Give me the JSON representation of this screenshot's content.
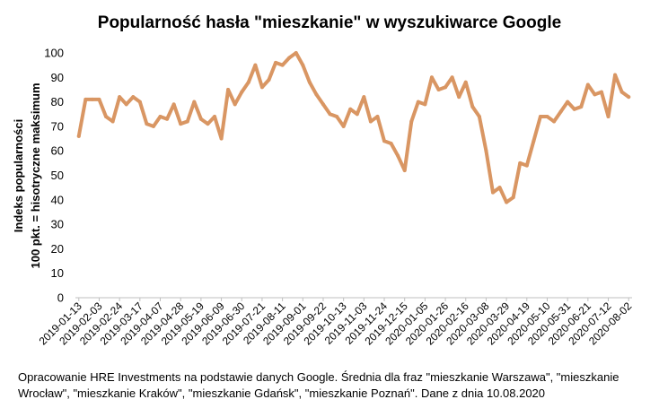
{
  "chart_data": {
    "type": "line",
    "title": "Popularność hasła \"mieszkanie\" w wyszukiwarce Google",
    "ylabel_line1": "Indeks popularności",
    "ylabel_line2": "100 pkt. = hisotryczne maksimum",
    "xlabel": "",
    "ylim": [
      0,
      100
    ],
    "yticks": [
      0,
      10,
      20,
      30,
      40,
      50,
      60,
      70,
      80,
      90,
      100
    ],
    "grid": false,
    "legend": "none",
    "line_color": "#D99663",
    "x_tick_labels": [
      "2019-01-13",
      "2019-02-03",
      "2019-02-24",
      "2019-03-17",
      "2019-04-07",
      "2019-04-28",
      "2019-05-19",
      "2019-06-09",
      "2019-06-30",
      "2019-07-21",
      "2019-08-11",
      "2019-09-01",
      "2019-09-22",
      "2019-10-13",
      "2019-11-03",
      "2019-11-24",
      "2019-12-15",
      "2020-01-05",
      "2020-01-26",
      "2020-02-16",
      "2020-03-08",
      "2020-03-29",
      "2020-04-19",
      "2020-05-10",
      "2020-05-31",
      "2020-06-21",
      "2020-07-12",
      "2020-08-02"
    ],
    "values": [
      66,
      81,
      81,
      81,
      74,
      72,
      82,
      79,
      82,
      80,
      71,
      70,
      74,
      73,
      79,
      71,
      72,
      80,
      73,
      71,
      74,
      65,
      85,
      79,
      84,
      88,
      95,
      86,
      89,
      96,
      95,
      98,
      100,
      95,
      88,
      83,
      79,
      75,
      74,
      70,
      77,
      75,
      82,
      72,
      74,
      64,
      63,
      58,
      52,
      72,
      80,
      79,
      90,
      85,
      86,
      90,
      82,
      88,
      78,
      74,
      60,
      43,
      45,
      39,
      41,
      55,
      54,
      64,
      74,
      74,
      72,
      76,
      80,
      77,
      78,
      87,
      83,
      84,
      74,
      91,
      84,
      82
    ]
  },
  "footnote": {
    "line1": "Opracowanie HRE Investments na podstawie danych Google. Średnia dla fraz \"mieszkanie Warszawa\", \"mieszkanie",
    "line2": "Wrocław\", \"mieszkanie Kraków\", \"mieszkanie Gdańsk\", \"mieszkanie Poznań\". Dane z dnia 10.08.2020"
  }
}
